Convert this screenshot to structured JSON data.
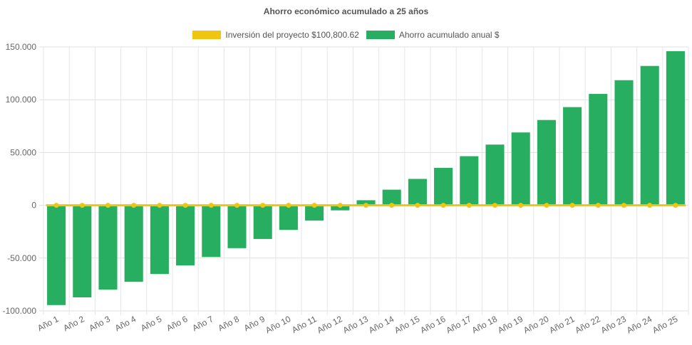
{
  "chart_data": {
    "type": "bar",
    "title": "Ahorro económico acumulado a 25 años",
    "categories": [
      "Año 1",
      "Año 2",
      "Año 3",
      "Año 4",
      "Año 5",
      "Año 6",
      "Año 7",
      "Año 8",
      "Año 9",
      "Año 10",
      "Año 11",
      "Año 12",
      "Año 13",
      "Año 14",
      "Año 15",
      "Año 16",
      "Año 17",
      "Año 18",
      "Año 19",
      "Año 20",
      "Año 21",
      "Año 22",
      "Año 23",
      "Año 24",
      "Año 25"
    ],
    "series": [
      {
        "name": "Inversión del proyecto $100,800.62",
        "type": "line",
        "color": "#f1c40f",
        "values": [
          0,
          0,
          0,
          0,
          0,
          0,
          0,
          0,
          0,
          0,
          0,
          0,
          0,
          0,
          0,
          0,
          0,
          0,
          0,
          0,
          0,
          0,
          0,
          0,
          0
        ]
      },
      {
        "name": "Ahorro acumulado anual $",
        "type": "bar",
        "color": "#27ae60",
        "values": [
          -94500,
          -87200,
          -79900,
          -72500,
          -65100,
          -57000,
          -49000,
          -40600,
          -31900,
          -23300,
          -14500,
          -4800,
          4800,
          14800,
          25000,
          35500,
          46500,
          57500,
          69000,
          80800,
          93000,
          105500,
          118500,
          132000,
          146000
        ]
      }
    ],
    "ylim": [
      -100000,
      150000
    ],
    "yticks": [
      150000,
      100000,
      50000,
      0,
      -50000,
      -100000
    ],
    "ytick_labels": [
      "150.000",
      "100.000",
      "50.000",
      "0",
      "-50.000",
      "-100.000"
    ],
    "grid": true,
    "legend_position": "top"
  }
}
